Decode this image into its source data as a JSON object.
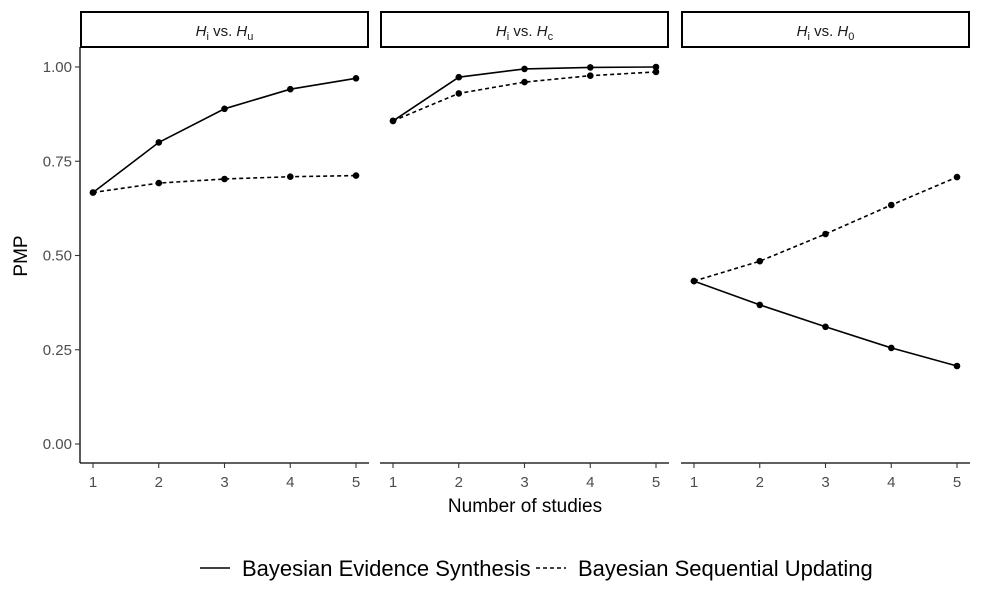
{
  "chart_data": {
    "type": "line",
    "xlabel": "Number of studies",
    "ylabel": "PMP",
    "x": [
      1,
      2,
      3,
      4,
      5
    ],
    "x_ticks": [
      "1",
      "2",
      "3",
      "4",
      "5"
    ],
    "ylim": [
      0,
      1
    ],
    "y_ticks": [
      "0.00",
      "0.25",
      "0.50",
      "0.75",
      "1.00"
    ],
    "grid": false,
    "legend_position": "bottom",
    "legend": [
      {
        "label": "Bayesian Evidence Synthesis",
        "linestyle": "solid"
      },
      {
        "label": "Bayesian Sequential Updating",
        "linestyle": "dashed"
      }
    ],
    "panels": [
      {
        "title_main": "H",
        "title_sub": "i",
        "title_mid": " vs. ",
        "title_main2": "H",
        "title_sub2": "u",
        "series": [
          {
            "name": "Bayesian Evidence Synthesis",
            "values": [
              0.667,
              0.8,
              0.889,
              0.941,
              0.97
            ]
          },
          {
            "name": "Bayesian Sequential Updating",
            "values": [
              0.667,
              0.692,
              0.703,
              0.709,
              0.712
            ]
          }
        ]
      },
      {
        "title_main": "H",
        "title_sub": "i",
        "title_mid": " vs. ",
        "title_main2": "H",
        "title_sub2": "c",
        "series": [
          {
            "name": "Bayesian Evidence Synthesis",
            "values": [
              0.857,
              0.973,
              0.995,
              0.999,
              1.0
            ]
          },
          {
            "name": "Bayesian Sequential Updating",
            "values": [
              0.857,
              0.93,
              0.96,
              0.977,
              0.987
            ]
          }
        ]
      },
      {
        "title_main": "H",
        "title_sub": "i",
        "title_mid": " vs. ",
        "title_main2": "H",
        "title_sub2": "0",
        "series": [
          {
            "name": "Bayesian Evidence Synthesis",
            "values": [
              0.432,
              0.369,
              0.311,
              0.255,
              0.207
            ]
          },
          {
            "name": "Bayesian Sequential Updating",
            "values": [
              0.432,
              0.485,
              0.557,
              0.634,
              0.708
            ]
          }
        ]
      }
    ]
  }
}
